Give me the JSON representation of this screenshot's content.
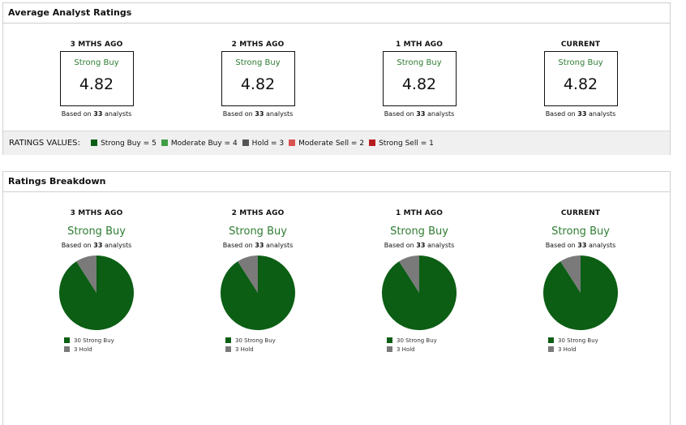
{
  "avg_panel": {
    "title": "Average Analyst Ratings",
    "periods": [
      {
        "label": "3 MTHS AGO",
        "rating": "Strong Buy",
        "value": "4.82",
        "based_prefix": "Based on ",
        "count": "33",
        "based_suffix": " analysts"
      },
      {
        "label": "2 MTHS AGO",
        "rating": "Strong Buy",
        "value": "4.82",
        "based_prefix": "Based on ",
        "count": "33",
        "based_suffix": " analysts"
      },
      {
        "label": "1 MTH AGO",
        "rating": "Strong Buy",
        "value": "4.82",
        "based_prefix": "Based on ",
        "count": "33",
        "based_suffix": " analysts"
      },
      {
        "label": "CURRENT",
        "rating": "Strong Buy",
        "value": "4.82",
        "based_prefix": "Based on ",
        "count": "33",
        "based_suffix": " analysts"
      }
    ],
    "legend_label": "RATINGS VALUES:",
    "legend": [
      {
        "text": "Strong Buy = 5",
        "color": "#0b5e14"
      },
      {
        "text": "Moderate Buy = 4",
        "color": "#3f9e45"
      },
      {
        "text": "Hold = 3",
        "color": "#555555"
      },
      {
        "text": "Moderate Sell = 2",
        "color": "#d9534f"
      },
      {
        "text": "Strong Sell = 1",
        "color": "#b71c1c"
      }
    ]
  },
  "breakdown_panel": {
    "title": "Ratings Breakdown"
  },
  "chart_data": [
    {
      "type": "pie",
      "title": "3 MTHS AGO",
      "subtitle": "Strong Buy",
      "based_prefix": "Based on ",
      "count": "33",
      "based_suffix": " analysts",
      "slices": [
        {
          "label": "30 Strong Buy",
          "value": 30,
          "color": "#0b5e14"
        },
        {
          "label": "3 Hold",
          "value": 3,
          "color": "#7a7a7a"
        }
      ]
    },
    {
      "type": "pie",
      "title": "2 MTHS AGO",
      "subtitle": "Strong Buy",
      "based_prefix": "Based on ",
      "count": "33",
      "based_suffix": " analysts",
      "slices": [
        {
          "label": "30 Strong Buy",
          "value": 30,
          "color": "#0b5e14"
        },
        {
          "label": "3 Hold",
          "value": 3,
          "color": "#7a7a7a"
        }
      ]
    },
    {
      "type": "pie",
      "title": "1 MTH AGO",
      "subtitle": "Strong Buy",
      "based_prefix": "Based on ",
      "count": "33",
      "based_suffix": " analysts",
      "slices": [
        {
          "label": "30 Strong Buy",
          "value": 30,
          "color": "#0b5e14"
        },
        {
          "label": "3 Hold",
          "value": 3,
          "color": "#7a7a7a"
        }
      ]
    },
    {
      "type": "pie",
      "title": "CURRENT",
      "subtitle": "Strong Buy",
      "based_prefix": "Based on ",
      "count": "33",
      "based_suffix": " analysts",
      "slices": [
        {
          "label": "30 Strong Buy",
          "value": 30,
          "color": "#0b5e14"
        },
        {
          "label": "3 Hold",
          "value": 3,
          "color": "#7a7a7a"
        }
      ]
    }
  ]
}
